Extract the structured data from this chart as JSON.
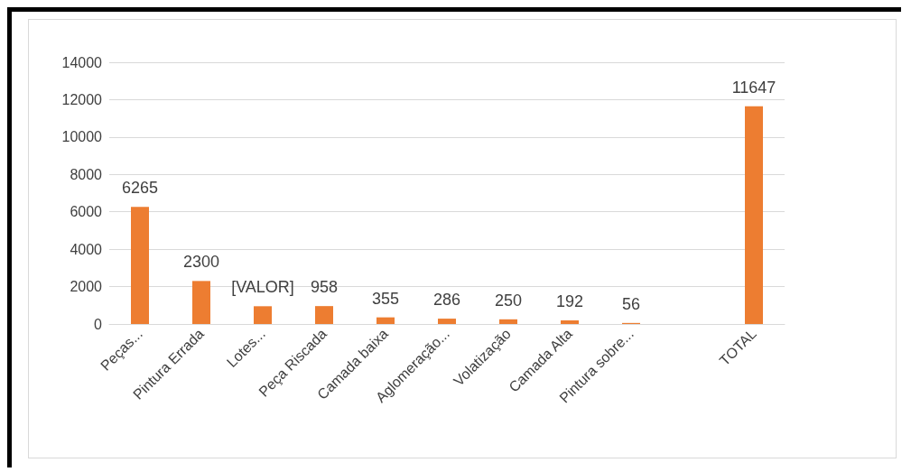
{
  "chart_data": {
    "type": "bar",
    "categories": [
      "Peças...",
      "Pintura Errada",
      "Lotes...",
      "Peça Riscada",
      "Camada baixa",
      "Aglomeração...",
      "Volatização",
      "Camada Alta",
      "Pintura sobre...",
      null,
      "TOTAL"
    ],
    "values": [
      6265,
      2300,
      950,
      958,
      355,
      286,
      250,
      192,
      56,
      null,
      11647
    ],
    "value_labels": [
      "6265",
      "2300",
      "[VALOR]",
      "958",
      "355",
      "286",
      "250",
      "192",
      "56",
      null,
      "11647"
    ],
    "color": "#ed7d31",
    "ylim": [
      0,
      14000
    ],
    "yticks": [
      0,
      2000,
      4000,
      6000,
      8000,
      10000,
      12000,
      14000
    ],
    "grid": "y"
  }
}
